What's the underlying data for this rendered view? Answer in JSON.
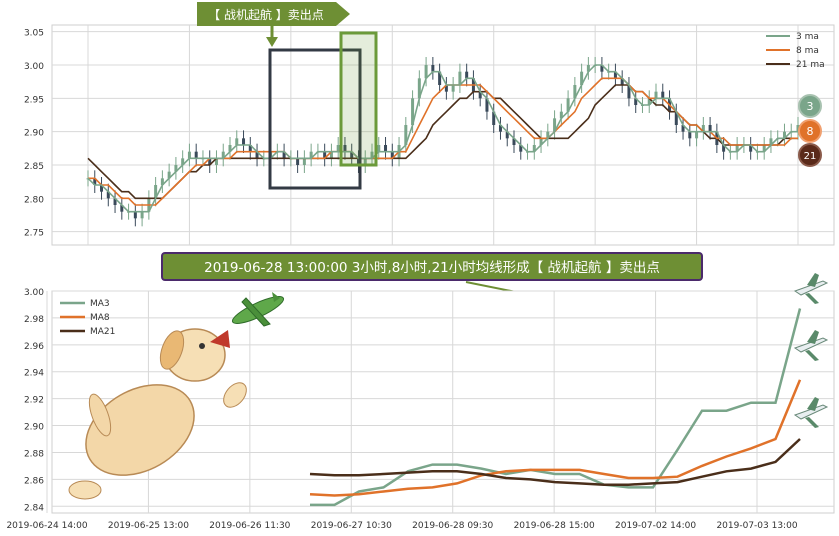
{
  "colors": {
    "ma3": "#7aa58a",
    "ma8": "#e0722a",
    "ma21": "#4a2e1a",
    "candle_up": "#7aa58a",
    "candle_down": "#3a4a5a",
    "banner_green": "#6e8f34",
    "banner_text": "#ffffff",
    "annotation_bg": "#6e8f34",
    "annotation_border": "#4b2a6b",
    "box_dark": "#333a44",
    "box_green": "#6b9a3a",
    "grid": "#d8d8d8"
  },
  "banner": {
    "label": "【 战机起航 】卖出点"
  },
  "annotation": {
    "text": "2019-06-28 13:00:00 3小时,8小时,21小时均线形成【 战机起航 】卖出点"
  },
  "badges": [
    {
      "label": "3",
      "color": "#7aa58a"
    },
    {
      "label": "8",
      "color": "#e0722a"
    },
    {
      "label": "21",
      "color": "#5a2a1a"
    }
  ],
  "icons": {
    "dog": "dog-catching-plane-illustration",
    "plane": "airplane-icon"
  },
  "chart_data": [
    {
      "type": "candlestick",
      "ylim": [
        2.73,
        3.06
      ],
      "yticks": [
        2.75,
        2.8,
        2.85,
        2.9,
        2.95,
        3.0,
        3.05
      ],
      "ytick_labels": [
        "2.75",
        "2.80",
        "2.85",
        "2.90",
        "2.95",
        "3.00",
        "3.05"
      ],
      "grid": true,
      "legend_position": "top-right",
      "legend": [
        "3 ma",
        "8 ma",
        "21 ma"
      ],
      "close": [
        2.83,
        2.82,
        2.81,
        2.8,
        2.79,
        2.78,
        2.78,
        2.77,
        2.78,
        2.8,
        2.82,
        2.83,
        2.84,
        2.85,
        2.86,
        2.87,
        2.86,
        2.86,
        2.85,
        2.86,
        2.87,
        2.88,
        2.89,
        2.88,
        2.87,
        2.86,
        2.86,
        2.87,
        2.87,
        2.86,
        2.86,
        2.85,
        2.86,
        2.87,
        2.87,
        2.86,
        2.87,
        2.88,
        2.87,
        2.86,
        2.85,
        2.86,
        2.87,
        2.88,
        2.87,
        2.86,
        2.88,
        2.91,
        2.95,
        2.98,
        3.0,
        2.99,
        2.97,
        2.96,
        2.97,
        2.99,
        2.98,
        2.96,
        2.95,
        2.93,
        2.91,
        2.9,
        2.89,
        2.88,
        2.87,
        2.87,
        2.88,
        2.89,
        2.9,
        2.92,
        2.93,
        2.95,
        2.97,
        2.99,
        3.0,
        3.0,
        2.99,
        2.99,
        2.98,
        2.97,
        2.95,
        2.94,
        2.94,
        2.95,
        2.96,
        2.95,
        2.93,
        2.91,
        2.9,
        2.89,
        2.9,
        2.91,
        2.9,
        2.88,
        2.87,
        2.87,
        2.88,
        2.88,
        2.87,
        2.87,
        2.88,
        2.89,
        2.89,
        2.9,
        2.9,
        2.91
      ],
      "ma3": [
        2.83,
        2.82,
        2.82,
        2.81,
        2.8,
        2.79,
        2.78,
        2.78,
        2.78,
        2.78,
        2.8,
        2.82,
        2.83,
        2.84,
        2.85,
        2.86,
        2.86,
        2.86,
        2.86,
        2.86,
        2.86,
        2.87,
        2.88,
        2.88,
        2.88,
        2.87,
        2.86,
        2.86,
        2.87,
        2.87,
        2.86,
        2.86,
        2.86,
        2.86,
        2.87,
        2.87,
        2.87,
        2.87,
        2.87,
        2.87,
        2.86,
        2.86,
        2.86,
        2.87,
        2.87,
        2.87,
        2.87,
        2.88,
        2.91,
        2.95,
        2.98,
        2.99,
        2.99,
        2.97,
        2.97,
        2.97,
        2.98,
        2.98,
        2.96,
        2.95,
        2.93,
        2.91,
        2.9,
        2.89,
        2.88,
        2.87,
        2.87,
        2.88,
        2.89,
        2.9,
        2.92,
        2.93,
        2.95,
        2.97,
        2.99,
        3.0,
        3.0,
        2.99,
        2.99,
        2.98,
        2.97,
        2.95,
        2.94,
        2.94,
        2.95,
        2.95,
        2.95,
        2.93,
        2.91,
        2.9,
        2.9,
        2.9,
        2.9,
        2.9,
        2.88,
        2.87,
        2.87,
        2.88,
        2.88,
        2.87,
        2.87,
        2.88,
        2.89,
        2.89,
        2.9,
        2.9
      ],
      "ma8": [
        2.83,
        2.83,
        2.82,
        2.82,
        2.81,
        2.8,
        2.8,
        2.79,
        2.79,
        2.79,
        2.79,
        2.8,
        2.81,
        2.82,
        2.83,
        2.84,
        2.85,
        2.85,
        2.86,
        2.86,
        2.86,
        2.86,
        2.87,
        2.87,
        2.87,
        2.87,
        2.87,
        2.87,
        2.87,
        2.87,
        2.86,
        2.86,
        2.86,
        2.86,
        2.86,
        2.86,
        2.87,
        2.87,
        2.87,
        2.87,
        2.86,
        2.86,
        2.86,
        2.86,
        2.86,
        2.86,
        2.87,
        2.87,
        2.89,
        2.91,
        2.93,
        2.95,
        2.96,
        2.97,
        2.97,
        2.97,
        2.97,
        2.97,
        2.97,
        2.96,
        2.95,
        2.94,
        2.93,
        2.92,
        2.91,
        2.9,
        2.89,
        2.89,
        2.89,
        2.9,
        2.91,
        2.92,
        2.93,
        2.95,
        2.96,
        2.97,
        2.98,
        2.98,
        2.98,
        2.98,
        2.97,
        2.96,
        2.96,
        2.95,
        2.95,
        2.95,
        2.94,
        2.93,
        2.92,
        2.91,
        2.91,
        2.9,
        2.9,
        2.89,
        2.89,
        2.88,
        2.88,
        2.88,
        2.88,
        2.88,
        2.88,
        2.88,
        2.88,
        2.88,
        2.89,
        2.89
      ],
      "ma21": [
        2.86,
        2.85,
        2.84,
        2.83,
        2.82,
        2.81,
        2.81,
        2.8,
        2.8,
        2.8,
        2.8,
        2.8,
        2.81,
        2.82,
        2.83,
        2.84,
        2.84,
        2.85,
        2.85,
        2.86,
        2.86,
        2.86,
        2.86,
        2.86,
        2.86,
        2.86,
        2.86,
        2.86,
        2.86,
        2.86,
        2.86,
        2.86,
        2.86,
        2.86,
        2.86,
        2.86,
        2.86,
        2.86,
        2.86,
        2.86,
        2.86,
        2.86,
        2.86,
        2.86,
        2.86,
        2.86,
        2.86,
        2.86,
        2.87,
        2.88,
        2.89,
        2.91,
        2.92,
        2.93,
        2.94,
        2.95,
        2.95,
        2.96,
        2.96,
        2.96,
        2.95,
        2.95,
        2.94,
        2.93,
        2.92,
        2.91,
        2.9,
        2.89,
        2.89,
        2.89,
        2.89,
        2.89,
        2.9,
        2.91,
        2.92,
        2.94,
        2.95,
        2.96,
        2.97,
        2.97,
        2.97,
        2.96,
        2.96,
        2.95,
        2.94,
        2.94,
        2.93,
        2.93,
        2.92,
        2.91,
        2.91,
        2.9,
        2.89,
        2.89,
        2.88,
        2.88,
        2.88,
        2.88,
        2.88,
        2.88,
        2.88,
        2.88,
        2.88,
        2.89,
        2.89,
        2.89
      ]
    },
    {
      "type": "line",
      "ylim": [
        2.835,
        3.0
      ],
      "yticks": [
        2.84,
        2.86,
        2.88,
        2.9,
        2.92,
        2.94,
        2.96,
        2.98,
        3.0
      ],
      "ytick_labels": [
        "2.84",
        "2.86",
        "2.88",
        "2.90",
        "2.92",
        "2.94",
        "2.96",
        "2.98",
        "3.00"
      ],
      "x_labels": [
        "2019-06-24 14:00",
        "2019-06-25 13:00",
        "2019-06-26 11:30",
        "2019-06-27 10:30",
        "2019-06-28 09:30",
        "2019-06-28 15:00",
        "2019-07-02 14:00",
        "2019-07-03 13:00"
      ],
      "grid": true,
      "legend_position": "top-left",
      "series": [
        {
          "name": "MA3",
          "x": [
            0,
            1,
            2,
            3,
            4,
            5,
            6,
            7,
            8,
            9,
            10,
            11,
            12,
            13,
            14,
            15,
            16,
            17,
            18,
            19,
            20
          ],
          "values": [
            2.841,
            2.841,
            2.851,
            2.854,
            2.866,
            2.871,
            2.871,
            2.868,
            2.864,
            2.867,
            2.864,
            2.864,
            2.856,
            2.854,
            2.854,
            2.882,
            2.911,
            2.911,
            2.917,
            2.917,
            2.987
          ]
        },
        {
          "name": "MA8",
          "x": [
            0,
            1,
            2,
            3,
            4,
            5,
            6,
            7,
            8,
            9,
            10,
            11,
            12,
            13,
            14,
            15,
            16,
            17,
            18,
            19,
            20
          ],
          "values": [
            2.849,
            2.848,
            2.849,
            2.851,
            2.853,
            2.854,
            2.857,
            2.863,
            2.866,
            2.867,
            2.867,
            2.867,
            2.864,
            2.861,
            2.861,
            2.862,
            2.87,
            2.877,
            2.883,
            2.89,
            2.934
          ]
        },
        {
          "name": "MA21",
          "x": [
            0,
            1,
            2,
            3,
            4,
            5,
            6,
            7,
            8,
            9,
            10,
            11,
            12,
            13,
            14,
            15,
            16,
            17,
            18,
            19,
            20
          ],
          "values": [
            2.864,
            2.863,
            2.863,
            2.864,
            2.865,
            2.866,
            2.866,
            2.864,
            2.861,
            2.86,
            2.858,
            2.857,
            2.856,
            2.856,
            2.857,
            2.858,
            2.862,
            2.866,
            2.868,
            2.873,
            2.89
          ]
        }
      ]
    }
  ]
}
